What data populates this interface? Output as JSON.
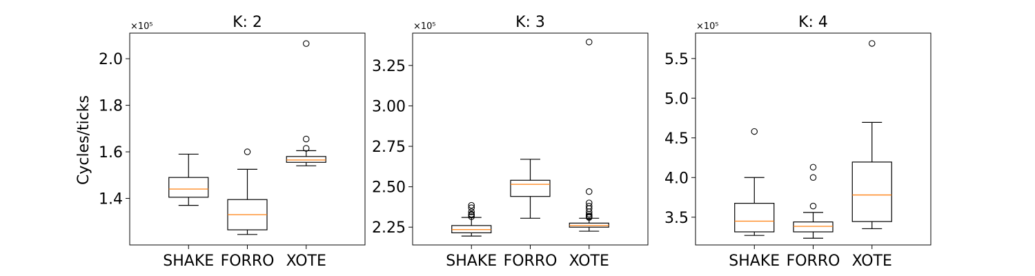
{
  "figure": {
    "ylabel": "Cycles/ticks",
    "multiplier_text": "×10⁵"
  },
  "chart_data": [
    {
      "type": "box",
      "title": "K: 2",
      "categories": [
        "SHAKE",
        "FORRO",
        "XOTE"
      ],
      "ylim": [
        1.2,
        2.11
      ],
      "yticks": [
        1.4,
        1.6,
        1.8,
        2.0
      ],
      "ytick_labels": [
        "1.4",
        "1.6",
        "1.8",
        "2.0"
      ],
      "boxes": [
        {
          "min": 1.37,
          "q1": 1.405,
          "median": 1.44,
          "q3": 1.49,
          "max": 1.59,
          "outliers": []
        },
        {
          "min": 1.245,
          "q1": 1.265,
          "median": 1.33,
          "q3": 1.395,
          "max": 1.525,
          "outliers": [
            1.6
          ]
        },
        {
          "min": 1.54,
          "q1": 1.555,
          "median": 1.565,
          "q3": 1.58,
          "max": 1.605,
          "outliers": [
            1.615,
            1.655,
            2.065
          ]
        }
      ]
    },
    {
      "type": "box",
      "title": "K: 3",
      "categories": [
        "SHAKE",
        "FORRO",
        "XOTE"
      ],
      "ylim": [
        2.14,
        3.45
      ],
      "yticks": [
        2.25,
        2.5,
        2.75,
        3.0,
        3.25
      ],
      "ytick_labels": [
        "2.25",
        "2.50",
        "2.75",
        "3.00",
        "3.25"
      ],
      "boxes": [
        {
          "min": 2.195,
          "q1": 2.215,
          "median": 2.235,
          "q3": 2.26,
          "max": 2.31,
          "outliers": [
            2.315,
            2.325,
            2.33,
            2.345,
            2.37,
            2.385
          ]
        },
        {
          "min": 2.305,
          "q1": 2.44,
          "median": 2.515,
          "q3": 2.54,
          "max": 2.67,
          "outliers": []
        },
        {
          "min": 2.225,
          "q1": 2.25,
          "median": 2.26,
          "q3": 2.275,
          "max": 2.305,
          "outliers": [
            2.31,
            2.315,
            2.32,
            2.33,
            2.345,
            2.365,
            2.38,
            2.4,
            2.47,
            3.395
          ]
        }
      ]
    },
    {
      "type": "box",
      "title": "K: 4",
      "categories": [
        "SHAKE",
        "FORRO",
        "XOTE"
      ],
      "ylim": [
        3.15,
        5.82
      ],
      "yticks": [
        3.5,
        4.0,
        4.5,
        5.0,
        5.5
      ],
      "ytick_labels": [
        "3.5",
        "4.0",
        "4.5",
        "5.0",
        "5.5"
      ],
      "boxes": [
        {
          "min": 3.27,
          "q1": 3.315,
          "median": 3.45,
          "q3": 3.675,
          "max": 4.0,
          "outliers": [
            4.58
          ]
        },
        {
          "min": 3.235,
          "q1": 3.315,
          "median": 3.385,
          "q3": 3.44,
          "max": 3.56,
          "outliers": [
            3.64,
            4.0,
            4.13
          ]
        },
        {
          "min": 3.355,
          "q1": 3.445,
          "median": 3.78,
          "q3": 4.195,
          "max": 4.695,
          "outliers": [
            5.69
          ]
        }
      ]
    }
  ]
}
